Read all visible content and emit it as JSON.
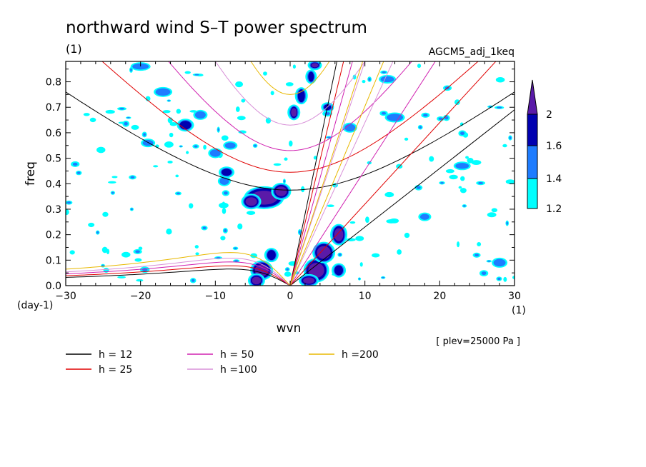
{
  "chart_data": {
    "type": "heatmap",
    "title": "northward wind S–T power spectrum",
    "units_label": "(1)",
    "model_label": "AGCM5_adj_1keq",
    "xlabel": "wvn",
    "ylabel": "freq",
    "x_unit": "(1)",
    "y_unit": "(day-1)",
    "note": "[ plev=25000 Pa ]",
    "xlim": [
      -30,
      30
    ],
    "ylim": [
      0,
      0.88
    ],
    "x_ticks": [
      -30,
      -20,
      -10,
      0,
      10,
      20,
      30
    ],
    "y_ticks": [
      0.0,
      0.1,
      0.2,
      0.3,
      0.4,
      0.5,
      0.6,
      0.7,
      0.8
    ],
    "x_tick_labels": [
      "−30",
      "−20",
      "−10",
      "0",
      "10",
      "20",
      "30"
    ],
    "y_tick_labels": [
      "0.0",
      "0.1",
      "0.2",
      "0.3",
      "0.4",
      "0.5",
      "0.6",
      "0.7",
      "0.8"
    ],
    "colorbar": {
      "levels": [
        1.2,
        1.4,
        1.6,
        2
      ],
      "labels": [
        "1.2",
        "1.4",
        "1.6",
        "2"
      ],
      "colors": [
        "#00ffff",
        "#1e7cff",
        "#0000b0",
        "#5a1aa8"
      ]
    },
    "dispersion_curves": [
      {
        "label": "h = 12",
        "color": "#000000"
      },
      {
        "label": "h = 25",
        "color": "#e00000"
      },
      {
        "label": "h = 50",
        "color": "#d020b0"
      },
      {
        "label": "h =100",
        "color": "#d890d8"
      },
      {
        "label": "h =200",
        "color": "#e8b800"
      }
    ],
    "curve_sets": {
      "kelvin_slope_freq_at_wvn30": [
        0.69,
        0.96,
        1.36,
        1.92,
        2.72
      ],
      "wig_min_freq": [
        0.375,
        0.445,
        0.53,
        0.63,
        0.75
      ],
      "wig_freq_at_wvn30": [
        0.76,
        1.01,
        1.4,
        1.95,
        2.74
      ],
      "rossby_peak_freq": [
        0.065,
        0.078,
        0.093,
        0.108,
        0.13
      ]
    },
    "high_power_regions": [
      {
        "wvn": -3.5,
        "freq": 0.34,
        "level": 2
      },
      {
        "wvn": -3.5,
        "freq": 0.06,
        "level": 2
      },
      {
        "wvn": 4.5,
        "freq": 0.09,
        "level": 2
      },
      {
        "wvn": 5.5,
        "freq": 0.18,
        "level": 2
      },
      {
        "wvn": 0.5,
        "freq": 0.7,
        "level": 2
      },
      {
        "wvn": -8.5,
        "freq": 0.44,
        "level": 1.6
      },
      {
        "wvn": -13,
        "freq": 0.65,
        "level": 1.6
      },
      {
        "wvn": 5,
        "freq": 0.7,
        "level": 1.6
      },
      {
        "wvn": 3,
        "freq": 0.8,
        "level": 1.6
      },
      {
        "wvn": -17,
        "freq": 0.76,
        "level": 1.4
      },
      {
        "wvn": 14,
        "freq": 0.66,
        "level": 1.4
      },
      {
        "wvn": 28,
        "freq": 0.09,
        "level": 1.4
      },
      {
        "wvn": 23,
        "freq": 0.47,
        "level": 1.4
      }
    ]
  }
}
